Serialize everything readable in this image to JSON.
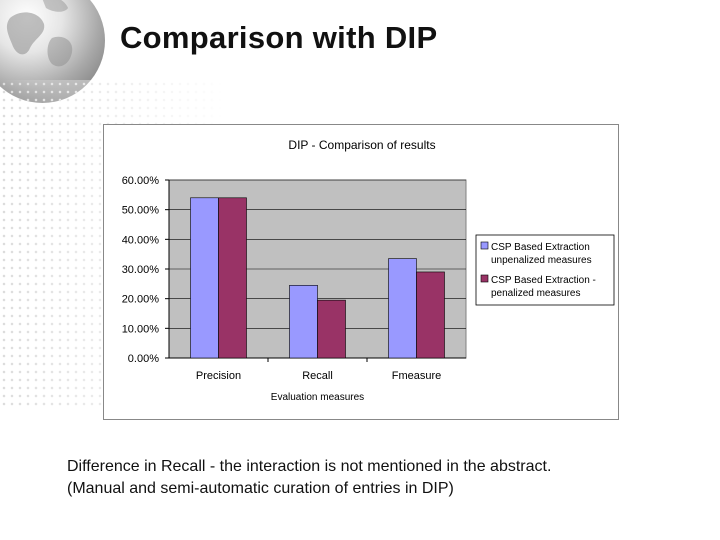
{
  "slide": {
    "title": "Comparison with DIP",
    "caption_line1": "Difference in Recall - the interaction is not mentioned in the abstract.",
    "caption_line2": "(Manual and semi-automatic curation of entries in DIP)"
  },
  "chart_data": {
    "type": "bar",
    "title": "DIP - Comparison of results",
    "xlabel": "Evaluation measures",
    "ylabel": "",
    "categories": [
      "Precision",
      "Recall",
      "Fmeasure"
    ],
    "series": [
      {
        "name": "CSP Based Extraction unpenalized measures",
        "values": [
          54.0,
          24.5,
          33.5
        ],
        "color": "#9999ff"
      },
      {
        "name": "CSP Based Extraction - penalized measures",
        "values": [
          54.0,
          19.5,
          29.0
        ],
        "color": "#993366"
      }
    ],
    "yticks": [
      "0.00%",
      "10.00%",
      "20.00%",
      "30.00%",
      "40.00%",
      "50.00%",
      "60.00%"
    ],
    "ylim": [
      0,
      60
    ],
    "grid": true,
    "legend": "right",
    "plot_background": "#c0c0c0"
  }
}
